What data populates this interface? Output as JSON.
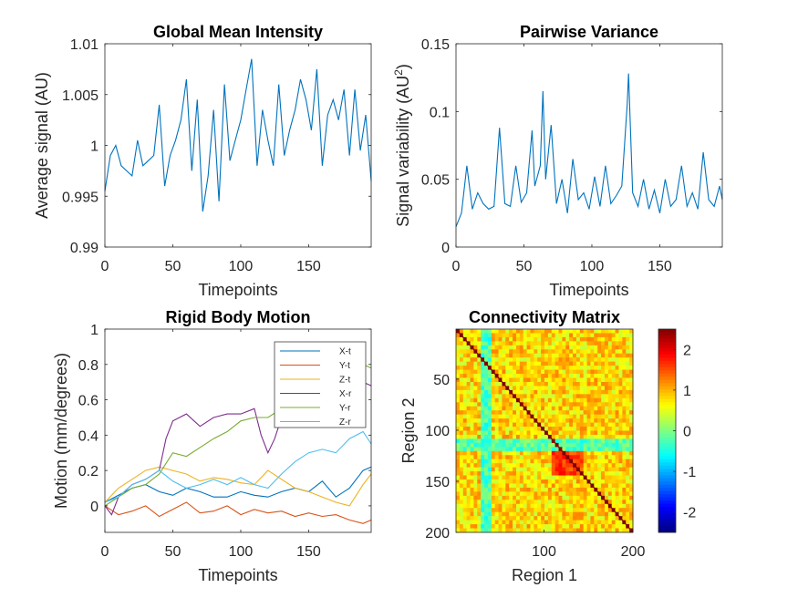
{
  "chart_data": [
    {
      "type": "line",
      "title": "Global Mean Intensity",
      "xlabel": "Timepoints",
      "ylabel": "Average signal (AU)",
      "xlim": [
        0,
        196
      ],
      "ylim": [
        0.99,
        1.01
      ],
      "xticks": [
        0,
        50,
        100,
        150
      ],
      "yticks": [
        0.99,
        0.995,
        1,
        1.005,
        1.01
      ],
      "ytick_labels": [
        "0.99",
        "0.995",
        "1",
        "1.005",
        "1.01"
      ],
      "grid": false,
      "series": [
        {
          "color": "#0072BD",
          "x": [
            0,
            4,
            8,
            12,
            16,
            20,
            24,
            28,
            32,
            36,
            40,
            44,
            48,
            52,
            56,
            60,
            64,
            68,
            72,
            76,
            80,
            84,
            88,
            92,
            96,
            100,
            104,
            108,
            112,
            116,
            120,
            124,
            128,
            132,
            136,
            140,
            144,
            148,
            152,
            156,
            160,
            164,
            168,
            172,
            176,
            180,
            184,
            188,
            192,
            196
          ],
          "values": [
            0.9955,
            0.999,
            1.0,
            0.998,
            0.9975,
            0.997,
            1.0005,
            0.998,
            0.9985,
            0.999,
            1.004,
            0.996,
            0.999,
            1.0005,
            1.0025,
            1.0065,
            0.9975,
            1.0045,
            0.9935,
            0.997,
            1.0035,
            0.9945,
            1.006,
            0.9985,
            1.0005,
            1.0025,
            1.0055,
            1.0085,
            0.998,
            1.0035,
            1.0005,
            0.998,
            1.006,
            0.999,
            1.0015,
            1.0035,
            1.0065,
            1.0045,
            1.0015,
            1.0075,
            0.998,
            1.003,
            1.0045,
            1.0025,
            1.0055,
            0.999,
            1.0055,
            0.9995,
            1.003,
            0.9965
          ]
        }
      ]
    },
    {
      "type": "line",
      "title": "Pairwise Variance",
      "xlabel": "Timepoints",
      "ylabel": "Signal variability (AU",
      "ylabel_superscript": "2",
      "ylabel_suffix": ")",
      "xlim": [
        0,
        196
      ],
      "ylim": [
        0,
        0.15
      ],
      "xticks": [
        0,
        50,
        100,
        150
      ],
      "yticks": [
        0,
        0.05,
        0.1,
        0.15
      ],
      "ytick_labels": [
        "0",
        "0.05",
        "0.1",
        "0.15"
      ],
      "grid": false,
      "series": [
        {
          "color": "#0072BD",
          "x": [
            0,
            4,
            8,
            12,
            16,
            20,
            24,
            28,
            32,
            36,
            40,
            44,
            48,
            52,
            56,
            58,
            62,
            64,
            66,
            70,
            74,
            78,
            82,
            86,
            90,
            94,
            98,
            102,
            106,
            110,
            114,
            118,
            122,
            126,
            127,
            130,
            134,
            138,
            142,
            146,
            150,
            154,
            158,
            162,
            166,
            170,
            174,
            178,
            182,
            186,
            190,
            194,
            196
          ],
          "values": [
            0.015,
            0.025,
            0.06,
            0.028,
            0.04,
            0.032,
            0.028,
            0.03,
            0.088,
            0.032,
            0.03,
            0.06,
            0.033,
            0.04,
            0.086,
            0.045,
            0.06,
            0.115,
            0.05,
            0.09,
            0.032,
            0.05,
            0.025,
            0.065,
            0.035,
            0.04,
            0.028,
            0.052,
            0.03,
            0.06,
            0.032,
            0.038,
            0.045,
            0.105,
            0.128,
            0.04,
            0.03,
            0.05,
            0.028,
            0.042,
            0.025,
            0.05,
            0.03,
            0.035,
            0.06,
            0.03,
            0.04,
            0.028,
            0.07,
            0.035,
            0.03,
            0.045,
            0.035
          ]
        }
      ]
    },
    {
      "type": "line",
      "title": "Rigid Body Motion",
      "xlabel": "Timepoints",
      "ylabel": "Motion (mm/degrees)",
      "xlim": [
        0,
        196
      ],
      "ylim": [
        -0.15,
        1
      ],
      "xticks": [
        0,
        50,
        100,
        150
      ],
      "yticks": [
        0,
        0.2,
        0.4,
        0.6,
        0.8,
        1
      ],
      "ytick_labels": [
        "0",
        "0.2",
        "0.4",
        "0.6",
        "0.8",
        "1"
      ],
      "grid": false,
      "legend_position": "top-right",
      "series": [
        {
          "name": "X-t",
          "color": "#0072BD",
          "x": [
            0,
            10,
            20,
            30,
            40,
            50,
            60,
            70,
            80,
            90,
            100,
            110,
            120,
            130,
            140,
            150,
            160,
            170,
            180,
            190,
            196
          ],
          "values": [
            0.02,
            0.06,
            0.1,
            0.12,
            0.08,
            0.06,
            0.1,
            0.08,
            0.05,
            0.05,
            0.08,
            0.06,
            0.05,
            0.08,
            0.1,
            0.08,
            0.14,
            0.05,
            0.1,
            0.2,
            0.22
          ]
        },
        {
          "name": "Y-t",
          "color": "#D95319",
          "x": [
            0,
            10,
            20,
            30,
            40,
            50,
            60,
            70,
            80,
            90,
            100,
            110,
            120,
            130,
            140,
            150,
            160,
            170,
            180,
            190,
            196
          ],
          "values": [
            0.0,
            -0.05,
            -0.03,
            0.0,
            -0.06,
            -0.02,
            0.02,
            -0.04,
            -0.03,
            0.0,
            -0.05,
            -0.02,
            -0.04,
            -0.03,
            -0.06,
            -0.04,
            -0.06,
            -0.05,
            -0.08,
            -0.1,
            -0.08
          ]
        },
        {
          "name": "Z-t",
          "color": "#EDB120",
          "x": [
            0,
            10,
            20,
            30,
            40,
            50,
            60,
            70,
            80,
            90,
            100,
            110,
            120,
            130,
            140,
            150,
            160,
            170,
            180,
            190,
            196
          ],
          "values": [
            0.02,
            0.1,
            0.15,
            0.2,
            0.22,
            0.2,
            0.18,
            0.14,
            0.16,
            0.15,
            0.13,
            0.12,
            0.2,
            0.15,
            0.1,
            0.08,
            0.05,
            0.02,
            0.0,
            0.12,
            0.18
          ]
        },
        {
          "name": "X-r",
          "color": "#7E2F8E",
          "x": [
            0,
            5,
            10,
            20,
            30,
            40,
            45,
            50,
            60,
            70,
            80,
            90,
            100,
            110,
            115,
            120,
            125,
            130,
            140,
            150,
            160,
            170,
            180,
            190,
            196
          ],
          "values": [
            0.0,
            -0.05,
            0.05,
            0.12,
            0.15,
            0.2,
            0.38,
            0.48,
            0.52,
            0.45,
            0.5,
            0.52,
            0.52,
            0.55,
            0.4,
            0.3,
            0.38,
            0.5,
            0.52,
            0.52,
            0.55,
            0.6,
            0.6,
            0.7,
            0.68
          ]
        },
        {
          "name": "Y-r",
          "color": "#77AC30",
          "x": [
            0,
            10,
            20,
            30,
            40,
            50,
            60,
            70,
            80,
            90,
            100,
            110,
            120,
            130,
            140,
            150,
            160,
            170,
            180,
            190,
            196
          ],
          "values": [
            0.0,
            0.05,
            0.1,
            0.12,
            0.18,
            0.3,
            0.28,
            0.33,
            0.38,
            0.42,
            0.48,
            0.5,
            0.5,
            0.55,
            0.55,
            0.6,
            0.66,
            0.68,
            0.72,
            0.8,
            0.78
          ]
        },
        {
          "name": "Z-r",
          "color": "#4DBEEE",
          "x": [
            0,
            10,
            20,
            30,
            40,
            50,
            60,
            70,
            80,
            90,
            100,
            110,
            120,
            130,
            140,
            150,
            160,
            170,
            180,
            190,
            196
          ],
          "values": [
            0.02,
            0.05,
            0.12,
            0.15,
            0.2,
            0.14,
            0.1,
            0.12,
            0.15,
            0.12,
            0.16,
            0.12,
            0.1,
            0.18,
            0.25,
            0.3,
            0.32,
            0.3,
            0.38,
            0.42,
            0.35
          ]
        }
      ]
    },
    {
      "type": "heatmap",
      "title": "Connectivity Matrix",
      "xlabel": "Region 1",
      "ylabel": "Region 2",
      "xlim": [
        1,
        200
      ],
      "ylim": [
        1,
        200
      ],
      "xticks": [
        100,
        200
      ],
      "yticks": [
        50,
        100,
        150,
        200
      ],
      "colormap": "jet",
      "clim": [
        -2.5,
        2.5
      ],
      "colorbar_ticks": [
        2,
        1,
        0,
        -1,
        -2
      ],
      "colorbar_tick_labels": [
        "2",
        "1",
        "0",
        "-1",
        "-2"
      ],
      "diagonal_value": 2.5,
      "background_value": 0.8,
      "resolution_cells": 50,
      "high_block": {
        "from": 110,
        "to": 145,
        "value": 1.6
      },
      "low_columns": {
        "from": 30,
        "to": 40,
        "value": -0.3
      },
      "low_rows": {
        "from": 110,
        "to": 120,
        "value": -0.2
      }
    }
  ]
}
